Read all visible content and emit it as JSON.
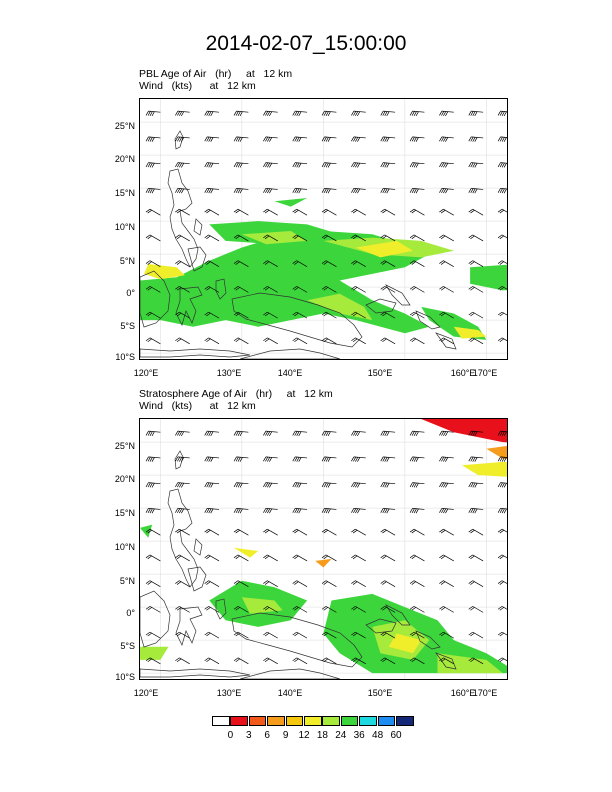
{
  "title": "2014-02-07_15:00:00",
  "panels": [
    {
      "label1": "PBL Age of Air   (hr)     at   12 km",
      "label2": "Wind   (kts)      at   12 km",
      "latitudes": [
        "25°N",
        "20°N",
        "15°N",
        "10°N",
        "5°N",
        "0°",
        "5°S",
        "10°S"
      ],
      "longitudes": [
        "120°E",
        "130°E",
        "140°E",
        "150°E",
        "160°E",
        "170°E"
      ]
    },
    {
      "label1": "Stratosphere Age of Air   (hr)     at   12 km",
      "label2": "Wind   (kts)      at   12 km",
      "latitudes": [
        "25°N",
        "20°N",
        "15°N",
        "10°N",
        "5°N",
        "0°",
        "5°S",
        "10°S"
      ],
      "longitudes": [
        "120°E",
        "130°E",
        "140°E",
        "150°E",
        "160°E",
        "170°E"
      ]
    }
  ],
  "colorbar": {
    "labels": [
      "0",
      "3",
      "6",
      "9",
      "12",
      "18",
      "24",
      "36",
      "48",
      "60"
    ],
    "colors": [
      "#ffffff",
      "#e8101a",
      "#f2591a",
      "#f59c1c",
      "#f5c80f",
      "#f0ee2b",
      "#a6ea3c",
      "#3cd63c",
      "#1fd9e0",
      "#1e8cf0",
      "#142878"
    ]
  },
  "colors": {
    "red": "#e8101a",
    "orange": "#f59c1c",
    "yellow": "#f0ee2b",
    "lightgreen": "#a6ea3c",
    "green": "#3cd63c",
    "cyan": "#1fd9e0"
  }
}
